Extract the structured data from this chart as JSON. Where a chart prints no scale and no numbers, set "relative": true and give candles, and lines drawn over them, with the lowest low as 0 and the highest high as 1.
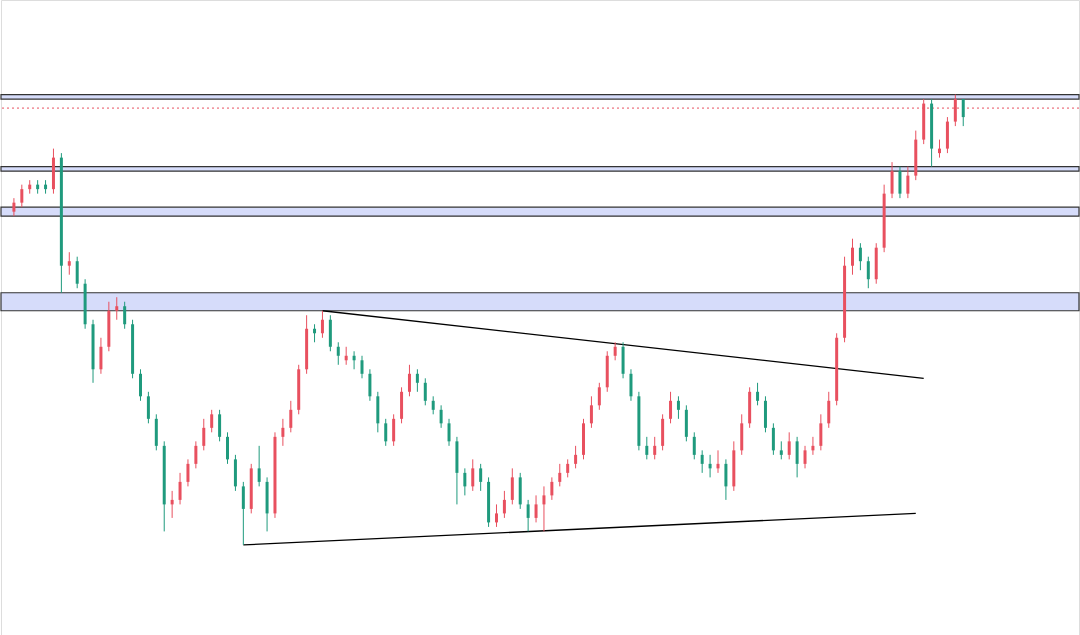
{
  "chart_data": {
    "type": "candlestick",
    "relative": true,
    "categories": [
      null,
      null,
      null,
      null,
      null,
      null,
      null,
      null,
      null,
      null,
      null,
      null,
      null,
      null,
      null,
      null,
      null,
      null,
      null,
      null,
      null,
      null,
      null,
      null,
      null,
      null,
      null,
      null,
      null,
      null,
      null,
      null,
      null,
      null,
      null,
      null,
      null,
      null,
      null,
      null,
      null,
      null,
      null,
      null,
      null,
      null,
      null,
      null,
      null,
      null,
      null,
      null,
      null,
      null,
      null,
      null,
      null,
      null,
      null,
      null,
      null,
      null,
      null,
      null,
      null,
      null,
      null,
      null,
      null,
      null,
      null,
      null,
      null,
      null,
      null,
      null,
      null,
      null,
      null,
      null,
      null,
      null,
      null,
      null,
      null,
      null,
      null,
      null,
      null,
      null,
      null,
      null,
      null,
      null,
      null,
      null,
      null,
      null,
      null,
      null,
      null,
      null,
      null,
      null,
      null,
      null,
      null,
      null,
      null,
      null,
      null,
      null,
      null,
      null,
      null,
      null,
      null,
      null,
      null,
      null,
      null
    ],
    "colors": [
      "#e8505f",
      "#e8505f",
      "#e8505f",
      "#1f9a7d",
      "#1f9a7d",
      "#e8505f",
      "#1f9a7d",
      "#e8505f",
      "#1f9a7d",
      "#1f9a7d",
      "#1f9a7d",
      "#e8505f",
      "#e8505f",
      "#e8505f",
      "#1f9a7d",
      "#1f9a7d",
      "#1f9a7d",
      "#1f9a7d",
      "#1f9a7d",
      "#1f9a7d",
      "#e8505f",
      "#e8505f",
      "#e8505f",
      "#e8505f",
      "#e8505f",
      "#e8505f",
      "#1f9a7d",
      "#1f9a7d",
      "#1f9a7d",
      "#1f9a7d",
      "#e8505f",
      "#1f9a7d",
      "#1f9a7d",
      "#e8505f",
      "#e8505f",
      "#e8505f",
      "#e8505f",
      "#e8505f",
      "#1f9a7d",
      "#e8505f",
      "#1f9a7d",
      "#1f9a7d",
      "#e8505f",
      "#1f9a7d",
      "#1f9a7d",
      "#1f9a7d",
      "#1f9a7d",
      "#1f9a7d",
      "#e8505f",
      "#e8505f",
      "#e8505f",
      "#1f9a7d",
      "#1f9a7d",
      "#1f9a7d",
      "#1f9a7d",
      "#1f9a7d",
      "#1f9a7d",
      "#1f9a7d",
      "#e8505f",
      "#1f9a7d",
      "#1f9a7d",
      "#e8505f",
      "#e8505f",
      "#e8505f",
      "#1f9a7d",
      "#1f9a7d",
      "#e8505f",
      "#e8505f",
      "#e8505f",
      "#e8505f",
      "#e8505f",
      "#e8505f",
      "#e8505f",
      "#e8505f",
      "#e8505f",
      "#e8505f",
      "#e8505f",
      "#1f9a7d",
      "#1f9a7d",
      "#1f9a7d",
      "#1f9a7d",
      "#e8505f",
      "#e8505f",
      "#e8505f",
      "#1f9a7d",
      "#1f9a7d",
      "#1f9a7d",
      "#1f9a7d",
      "#1f9a7d",
      "#e8505f",
      "#1f9a7d",
      "#e8505f",
      "#e8505f",
      "#e8505f",
      "#1f9a7d",
      "#1f9a7d",
      "#1f9a7d",
      "#1f9a7d",
      "#e8505f",
      "#1f9a7d",
      "#e8505f",
      "#e8505f",
      "#e8505f",
      "#e8505f",
      "#e8505f",
      "#e8505f",
      "#e8505f",
      "#1f9a7d",
      "#1f9a7d",
      "#e8505f",
      "#e8505f",
      "#e8505f",
      "#1f9a7d",
      "#e8505f",
      "#e8505f",
      "#e8505f",
      "#1f9a7d",
      "#e8505f",
      "#e8505f",
      "#e8505f",
      "#1f9a7d"
    ],
    "ohlc": [
      [
        0.74,
        0.77,
        0.73,
        0.76
      ],
      [
        0.76,
        0.8,
        0.75,
        0.79
      ],
      [
        0.79,
        0.81,
        0.78,
        0.8
      ],
      [
        0.8,
        0.81,
        0.78,
        0.79
      ],
      [
        0.8,
        0.81,
        0.78,
        0.79
      ],
      [
        0.79,
        0.88,
        0.78,
        0.86
      ],
      [
        0.86,
        0.87,
        0.56,
        0.62
      ],
      [
        0.62,
        0.65,
        0.6,
        0.63
      ],
      [
        0.63,
        0.64,
        0.57,
        0.58
      ],
      [
        0.58,
        0.59,
        0.48,
        0.49
      ],
      [
        0.49,
        0.5,
        0.36,
        0.39
      ],
      [
        0.39,
        0.46,
        0.38,
        0.44
      ],
      [
        0.44,
        0.54,
        0.43,
        0.52
      ],
      [
        0.52,
        0.55,
        0.5,
        0.53
      ],
      [
        0.53,
        0.54,
        0.48,
        0.49
      ],
      [
        0.49,
        0.5,
        0.37,
        0.38
      ],
      [
        0.38,
        0.39,
        0.32,
        0.33
      ],
      [
        0.33,
        0.34,
        0.27,
        0.28
      ],
      [
        0.28,
        0.29,
        0.21,
        0.22
      ],
      [
        0.22,
        0.23,
        0.03,
        0.09
      ],
      [
        0.09,
        0.12,
        0.06,
        0.1
      ],
      [
        0.1,
        0.16,
        0.09,
        0.14
      ],
      [
        0.14,
        0.19,
        0.13,
        0.18
      ],
      [
        0.18,
        0.23,
        0.17,
        0.22
      ],
      [
        0.22,
        0.28,
        0.21,
        0.26
      ],
      [
        0.26,
        0.3,
        0.25,
        0.29
      ],
      [
        0.29,
        0.3,
        0.23,
        0.24
      ],
      [
        0.24,
        0.25,
        0.18,
        0.19
      ],
      [
        0.19,
        0.2,
        0.12,
        0.13
      ],
      [
        0.13,
        0.14,
        0.0,
        0.08
      ],
      [
        0.08,
        0.18,
        0.07,
        0.17
      ],
      [
        0.17,
        0.22,
        0.13,
        0.14
      ],
      [
        0.14,
        0.15,
        0.03,
        0.07
      ],
      [
        0.07,
        0.25,
        0.06,
        0.24
      ],
      [
        0.24,
        0.28,
        0.22,
        0.26
      ],
      [
        0.26,
        0.32,
        0.25,
        0.3
      ],
      [
        0.3,
        0.4,
        0.29,
        0.39
      ],
      [
        0.39,
        0.51,
        0.38,
        0.48
      ],
      [
        0.48,
        0.49,
        0.45,
        0.47
      ],
      [
        0.47,
        0.52,
        0.46,
        0.5
      ],
      [
        0.5,
        0.51,
        0.43,
        0.44
      ],
      [
        0.44,
        0.45,
        0.4,
        0.42
      ],
      [
        0.41,
        0.44,
        0.4,
        0.42
      ],
      [
        0.42,
        0.43,
        0.39,
        0.41
      ],
      [
        0.41,
        0.42,
        0.37,
        0.38
      ],
      [
        0.38,
        0.39,
        0.32,
        0.33
      ],
      [
        0.33,
        0.34,
        0.25,
        0.27
      ],
      [
        0.27,
        0.28,
        0.22,
        0.23
      ],
      [
        0.23,
        0.29,
        0.22,
        0.28
      ],
      [
        0.28,
        0.35,
        0.27,
        0.34
      ],
      [
        0.34,
        0.4,
        0.33,
        0.38
      ],
      [
        0.38,
        0.39,
        0.34,
        0.36
      ],
      [
        0.36,
        0.37,
        0.31,
        0.32
      ],
      [
        0.32,
        0.33,
        0.29,
        0.3
      ],
      [
        0.3,
        0.31,
        0.26,
        0.27
      ],
      [
        0.27,
        0.28,
        0.22,
        0.23
      ],
      [
        0.23,
        0.24,
        0.09,
        0.16
      ],
      [
        0.16,
        0.17,
        0.11,
        0.13
      ],
      [
        0.13,
        0.19,
        0.12,
        0.17
      ],
      [
        0.17,
        0.18,
        0.12,
        0.14
      ],
      [
        0.14,
        0.15,
        0.04,
        0.05
      ],
      [
        0.05,
        0.09,
        0.04,
        0.07
      ],
      [
        0.07,
        0.12,
        0.06,
        0.1
      ],
      [
        0.1,
        0.17,
        0.09,
        0.15
      ],
      [
        0.15,
        0.16,
        0.08,
        0.09
      ],
      [
        0.09,
        0.1,
        0.03,
        0.06
      ],
      [
        0.06,
        0.11,
        0.05,
        0.09
      ],
      [
        0.09,
        0.13,
        0.03,
        0.11
      ],
      [
        0.11,
        0.15,
        0.1,
        0.14
      ],
      [
        0.14,
        0.18,
        0.13,
        0.16
      ],
      [
        0.16,
        0.19,
        0.15,
        0.18
      ],
      [
        0.18,
        0.22,
        0.17,
        0.2
      ],
      [
        0.2,
        0.28,
        0.19,
        0.27
      ],
      [
        0.27,
        0.33,
        0.26,
        0.31
      ],
      [
        0.31,
        0.36,
        0.3,
        0.35
      ],
      [
        0.35,
        0.43,
        0.34,
        0.42
      ],
      [
        0.42,
        0.45,
        0.41,
        0.44
      ],
      [
        0.44,
        0.45,
        0.37,
        0.38
      ],
      [
        0.38,
        0.39,
        0.32,
        0.33
      ],
      [
        0.33,
        0.34,
        0.21,
        0.22
      ],
      [
        0.22,
        0.24,
        0.19,
        0.2
      ],
      [
        0.2,
        0.24,
        0.19,
        0.22
      ],
      [
        0.22,
        0.29,
        0.21,
        0.28
      ],
      [
        0.28,
        0.34,
        0.27,
        0.32
      ],
      [
        0.32,
        0.33,
        0.28,
        0.3
      ],
      [
        0.3,
        0.31,
        0.23,
        0.24
      ],
      [
        0.24,
        0.25,
        0.19,
        0.2
      ],
      [
        0.2,
        0.21,
        0.16,
        0.18
      ],
      [
        0.18,
        0.2,
        0.15,
        0.17
      ],
      [
        0.17,
        0.21,
        0.16,
        0.18
      ],
      [
        0.18,
        0.19,
        0.1,
        0.13
      ],
      [
        0.13,
        0.23,
        0.12,
        0.21
      ],
      [
        0.21,
        0.29,
        0.2,
        0.27
      ],
      [
        0.27,
        0.35,
        0.26,
        0.34
      ],
      [
        0.34,
        0.36,
        0.31,
        0.32
      ],
      [
        0.32,
        0.33,
        0.25,
        0.26
      ],
      [
        0.26,
        0.27,
        0.2,
        0.21
      ],
      [
        0.21,
        0.23,
        0.19,
        0.2
      ],
      [
        0.2,
        0.25,
        0.19,
        0.23
      ],
      [
        0.23,
        0.24,
        0.15,
        0.18
      ],
      [
        0.18,
        0.22,
        0.17,
        0.21
      ],
      [
        0.21,
        0.24,
        0.2,
        0.22
      ],
      [
        0.22,
        0.29,
        0.21,
        0.27
      ],
      [
        0.27,
        0.34,
        0.26,
        0.32
      ],
      [
        0.32,
        0.47,
        0.31,
        0.46
      ],
      [
        0.46,
        0.64,
        0.45,
        0.62
      ],
      [
        0.62,
        0.68,
        0.6,
        0.66
      ],
      [
        0.66,
        0.67,
        0.61,
        0.63
      ],
      [
        0.63,
        0.64,
        0.57,
        0.59
      ],
      [
        0.59,
        0.67,
        0.58,
        0.66
      ],
      [
        0.66,
        0.8,
        0.65,
        0.78
      ],
      [
        0.78,
        0.85,
        0.77,
        0.83
      ],
      [
        0.83,
        0.84,
        0.77,
        0.78
      ],
      [
        0.78,
        0.84,
        0.77,
        0.82
      ],
      [
        0.82,
        0.92,
        0.81,
        0.9
      ],
      [
        0.9,
        0.99,
        0.89,
        0.98
      ],
      [
        0.98,
        0.99,
        0.84,
        0.88
      ],
      [
        0.87,
        0.9,
        0.86,
        0.88
      ],
      [
        0.88,
        0.95,
        0.87,
        0.94
      ],
      [
        0.94,
        1.0,
        0.93,
        0.99
      ],
      [
        0.99,
        0.99,
        0.93,
        0.95
      ]
    ],
    "series": [
      {
        "type": "line",
        "color": "#000000",
        "values": [
          null,
          null,
          null,
          null,
          null,
          null,
          null,
          null,
          null,
          null,
          null,
          null,
          null,
          null,
          null,
          null,
          null,
          null,
          null,
          null,
          null,
          null,
          null,
          null,
          null,
          null,
          null,
          null,
          null,
          null,
          null,
          null,
          null,
          null,
          null,
          null,
          null,
          null,
          null,
          0.52,
          null,
          null,
          null,
          null,
          null,
          null,
          null,
          null,
          null,
          null,
          null,
          null,
          null,
          null,
          null,
          null,
          null,
          null,
          null,
          null,
          null,
          null,
          null,
          null,
          null,
          null,
          null,
          null,
          null,
          null,
          null,
          null,
          null,
          null,
          null,
          null,
          null,
          null,
          null,
          null,
          null,
          null,
          null,
          null,
          null,
          null,
          null,
          null,
          null,
          null,
          null,
          null,
          null,
          null,
          null,
          null,
          null,
          null,
          null,
          null,
          null,
          null,
          null,
          null,
          null,
          null,
          null,
          null,
          null,
          null,
          null,
          null,
          null,
          null,
          null,
          0.37,
          null,
          null,
          null,
          null,
          null
        ]
      },
      {
        "type": "line",
        "color": "#000000",
        "values": [
          null,
          null,
          null,
          null,
          null,
          null,
          null,
          null,
          null,
          null,
          null,
          null,
          null,
          null,
          null,
          null,
          null,
          null,
          null,
          null,
          null,
          null,
          null,
          null,
          null,
          null,
          null,
          null,
          null,
          0.0,
          null,
          null,
          null,
          null,
          null,
          null,
          null,
          null,
          null,
          null,
          null,
          null,
          null,
          null,
          null,
          null,
          null,
          null,
          null,
          null,
          null,
          null,
          null,
          null,
          null,
          null,
          null,
          null,
          null,
          null,
          null,
          null,
          null,
          null,
          null,
          null,
          null,
          null,
          null,
          null,
          null,
          null,
          null,
          null,
          null,
          null,
          null,
          null,
          null,
          null,
          null,
          null,
          null,
          null,
          null,
          null,
          null,
          null,
          null,
          null,
          null,
          null,
          null,
          null,
          null,
          null,
          null,
          null,
          null,
          null,
          null,
          null,
          null,
          null,
          null,
          null,
          null,
          null,
          null,
          null,
          null,
          null,
          null,
          null,
          0.07,
          null,
          null,
          null,
          null,
          null,
          null
        ]
      }
    ],
    "bands": [
      {
        "axis": "y",
        "from": 0.52,
        "to": 0.56,
        "color": "#d6dcfa"
      },
      {
        "axis": "y",
        "from": 0.73,
        "to": 0.75,
        "color": "#d6dcfa"
      },
      {
        "axis": "y",
        "from": 0.83,
        "to": 0.84,
        "color": "#d6dcfa"
      },
      {
        "axis": "y",
        "from": 0.99,
        "to": 1.0,
        "color": "#d6dcfa"
      }
    ],
    "ref_lines": [
      {
        "axis": "y",
        "value": 0.97,
        "color": "#e8505f",
        "line_style": "dotted"
      }
    ]
  }
}
